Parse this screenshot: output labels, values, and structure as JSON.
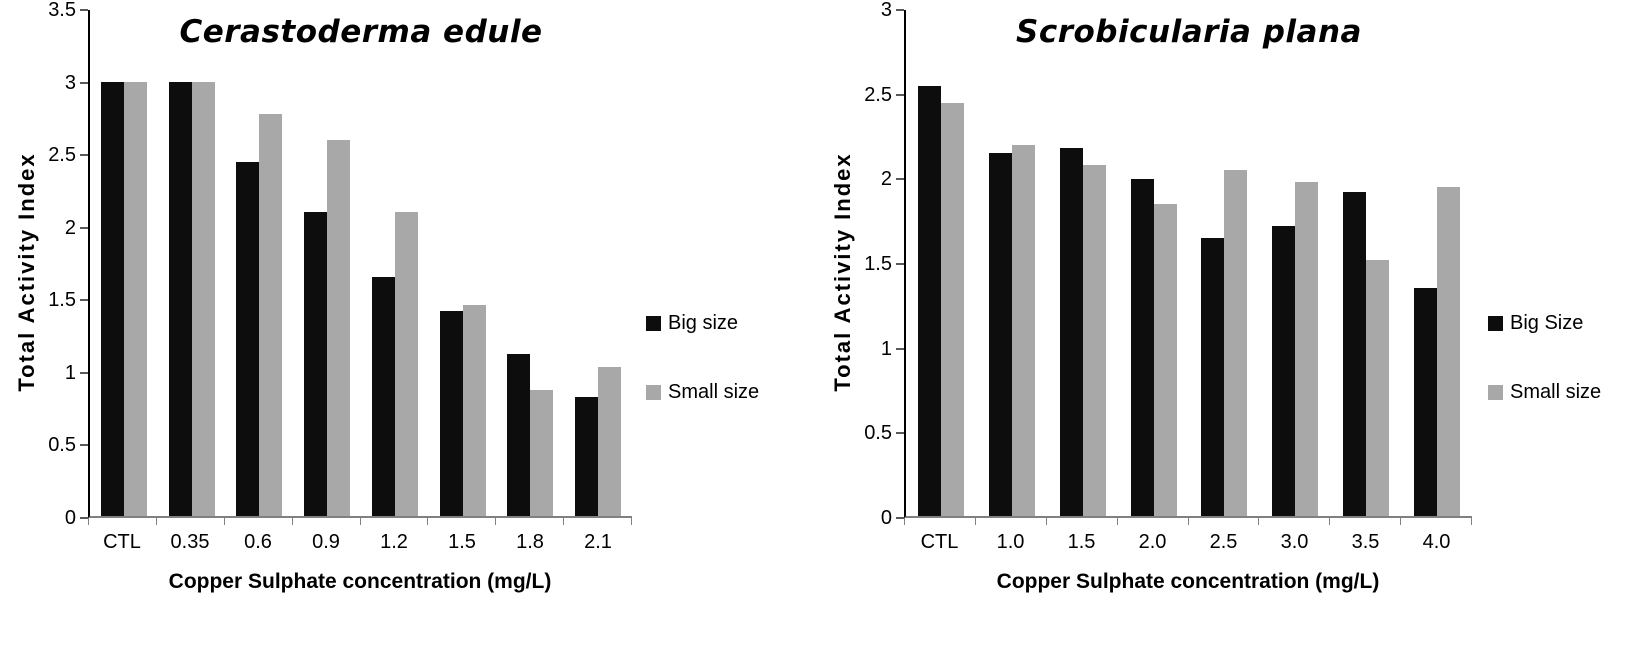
{
  "page": {
    "background": "#ffffff"
  },
  "chart_data": [
    {
      "type": "bar",
      "title": "Cerastoderma edule",
      "ylabel": "Total Activity Index",
      "xlabel": "Copper Sulphate concentration (mg/L)",
      "ylim": [
        0,
        3.5
      ],
      "yticks": [
        "3.5",
        "3",
        "2.5",
        "2",
        "1.5",
        "1",
        "0.5",
        "0"
      ],
      "categories": [
        "CTL",
        "0.35",
        "0.6",
        "0.9",
        "1.2",
        "1.5",
        "1.8",
        "2.1"
      ],
      "series": [
        {
          "name": "Big size",
          "color": "#0d0d0d",
          "values": [
            3.0,
            3.0,
            2.45,
            2.1,
            1.65,
            1.42,
            1.12,
            0.82
          ]
        },
        {
          "name": "Small size",
          "color": "#a8a8a8",
          "values": [
            3.0,
            3.0,
            2.78,
            2.6,
            2.1,
            1.46,
            0.87,
            1.03
          ]
        }
      ],
      "legend_position": "right",
      "grid": false
    },
    {
      "type": "bar",
      "title": "Scrobicularia plana",
      "ylabel": "Total Activity Index",
      "xlabel": "Copper Sulphate concentration (mg/L)",
      "ylim": [
        0,
        3
      ],
      "yticks": [
        "3",
        "2.5",
        "2",
        "1.5",
        "1",
        "0.5",
        "0"
      ],
      "categories": [
        "CTL",
        "1.0",
        "1.5",
        "2.0",
        "2.5",
        "3.0",
        "3.5",
        "4.0"
      ],
      "series": [
        {
          "name": "Big Size",
          "color": "#0d0d0d",
          "values": [
            2.55,
            2.15,
            2.18,
            2.0,
            1.65,
            1.72,
            1.92,
            1.35
          ]
        },
        {
          "name": "Small size",
          "color": "#a8a8a8",
          "values": [
            2.45,
            2.2,
            2.08,
            1.85,
            2.05,
            1.98,
            1.52,
            1.95
          ]
        }
      ],
      "legend_position": "right",
      "grid": false
    }
  ]
}
